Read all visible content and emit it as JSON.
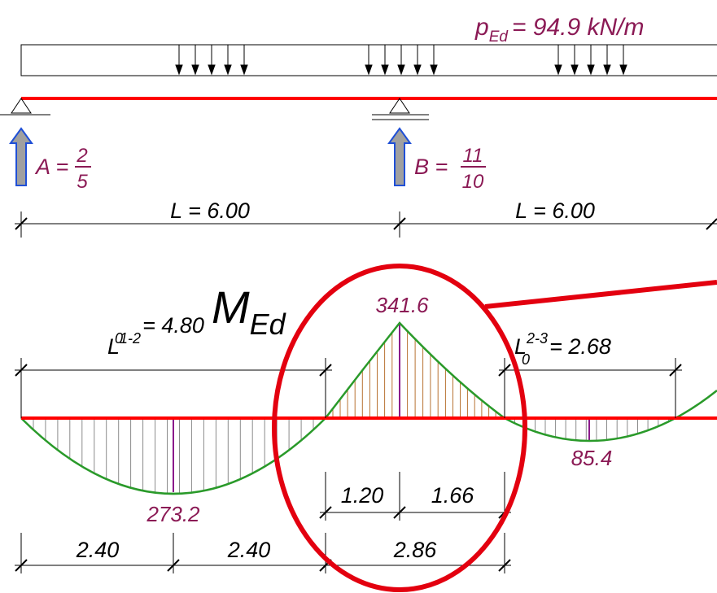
{
  "load": {
    "label": "p",
    "sub": "Ed",
    "value": "= 94.9 kN/m"
  },
  "reactions": {
    "A": {
      "label": "A =",
      "num": "2",
      "den": "5"
    },
    "B": {
      "label": "B =",
      "num": "11",
      "den": "10"
    }
  },
  "spans": [
    "L = 6.00",
    "L = 6.00"
  ],
  "moment": {
    "label": "M",
    "sub": "Ed"
  },
  "effective_lengths": {
    "l12": {
      "base": "L",
      "sup": "1-2",
      "sub": "0",
      "value": "= 4.80"
    },
    "l23": {
      "base": "L",
      "sup": "2-3",
      "sub": "0",
      "value": "= 2.68"
    }
  },
  "moment_values": {
    "support": "341.6",
    "span1": "273.2",
    "span2": "85.4"
  },
  "dimensions": {
    "d1": "2.40",
    "d2": "2.40",
    "d3": "2.86",
    "d4": "1.20",
    "d5": "1.66"
  },
  "colors": {
    "beam_axis": "#ff0000",
    "moment_curve": "#2a9a2a",
    "hatch": "#8b8b8b",
    "text_values": "#8b1a55",
    "reaction_fill": "#a0a0a0",
    "reaction_stroke": "#1f4fd6",
    "highlight": "#e3000f"
  }
}
